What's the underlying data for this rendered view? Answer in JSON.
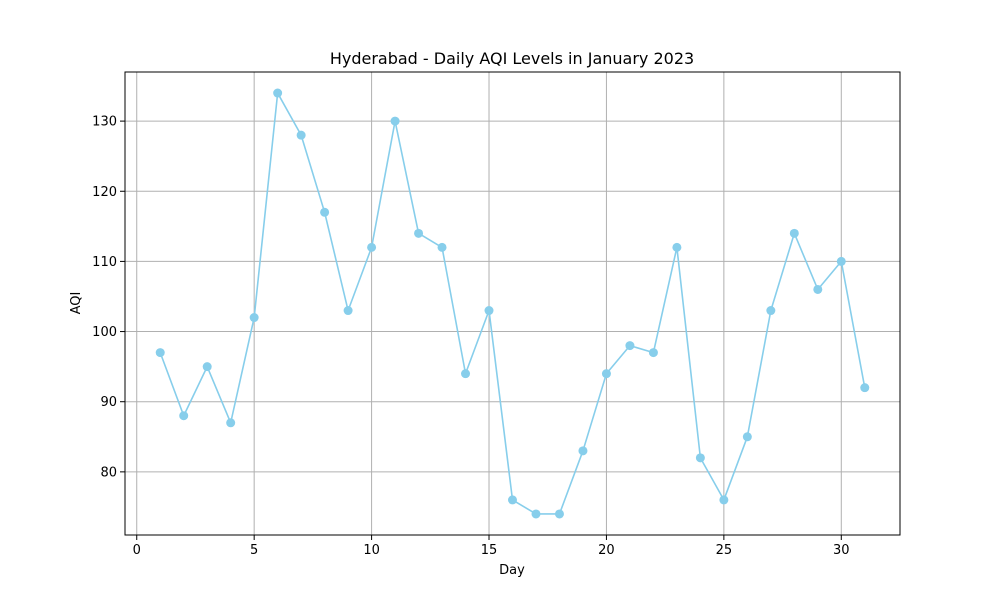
{
  "chart_data": {
    "type": "line",
    "title": "Hyderabad - Daily AQI Levels in January 2023",
    "xlabel": "Day",
    "ylabel": "AQI",
    "x": [
      1,
      2,
      3,
      4,
      5,
      6,
      7,
      8,
      9,
      10,
      11,
      12,
      13,
      14,
      15,
      16,
      17,
      18,
      19,
      20,
      21,
      22,
      23,
      24,
      25,
      26,
      27,
      28,
      29,
      30,
      31
    ],
    "series": [
      {
        "values": [
          97,
          88,
          95,
          87,
          102,
          134,
          128,
          117,
          103,
          112,
          130,
          114,
          112,
          94,
          103,
          76,
          74,
          74,
          83,
          94,
          98,
          97,
          112,
          82,
          76,
          85,
          103,
          114,
          106,
          110,
          92
        ],
        "color": "#87ceeb",
        "marker": "circle"
      }
    ],
    "xlim": [
      -0.5,
      32.5
    ],
    "ylim": [
      71,
      137
    ],
    "xticks": [
      0,
      5,
      10,
      15,
      20,
      25,
      30
    ],
    "yticks": [
      80,
      90,
      100,
      110,
      120,
      130
    ],
    "grid": true,
    "legend": "none"
  }
}
